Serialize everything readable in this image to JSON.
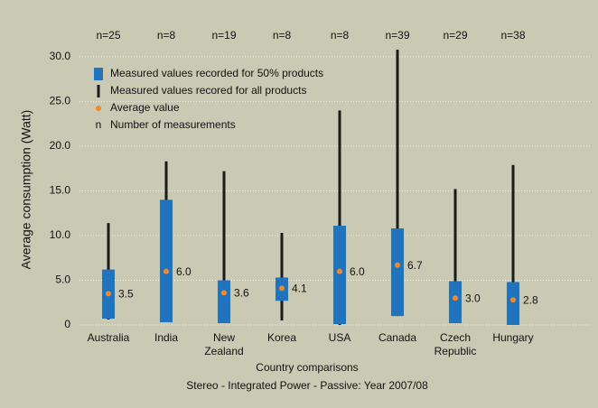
{
  "chart_data": {
    "type": "range-box",
    "y_label": "Average consumption (Watt)",
    "x_label": "Country comparisons",
    "subtitle": "Stereo - Integrated Power - Passive: Year 2007/08",
    "categories": [
      "Australia",
      "India",
      "New Zealand",
      "Korea",
      "USA",
      "Canada",
      "Czech Republic",
      "Hungary"
    ],
    "n_labels": [
      "n=25",
      "n=8",
      "n=19",
      "n=8",
      "n=8",
      "n=39",
      "n=29",
      "n=38"
    ],
    "min": [
      0.6,
      0.3,
      0.2,
      0.5,
      0,
      1.0,
      0.2,
      0
    ],
    "max": [
      11.4,
      18.3,
      17.2,
      10.3,
      24.0,
      30.8,
      15.2,
      17.9
    ],
    "box_low": [
      0.7,
      0.3,
      0.2,
      2.7,
      0.1,
      1.0,
      0.2,
      0
    ],
    "box_high": [
      6.2,
      14.0,
      5.0,
      5.3,
      11.1,
      10.8,
      4.9,
      4.8
    ],
    "mean": [
      3.5,
      6.0,
      3.6,
      4.1,
      6.0,
      6.7,
      3.0,
      2.8
    ],
    "mean_labels": [
      "3.5",
      "6.0",
      "3.6",
      "4.1",
      "6.0",
      "6.7",
      "3.0",
      "2.8"
    ],
    "box_color": "#1f74bd",
    "whisker_color": "#1a1a1a",
    "mean_color": "#f0892b",
    "legend": [
      {
        "symbol": "box",
        "label": "Measured values recorded for 50% products"
      },
      {
        "symbol": "whisker",
        "label": "Measured values recored for all products"
      },
      {
        "symbol": "dot",
        "label": "Average value"
      },
      {
        "symbol": "n",
        "symbol_text": "n",
        "label": "Number of measurements"
      }
    ],
    "ylim": [
      0,
      31
    ],
    "yticks": [
      0,
      {
        "value": 5,
        "label": "5.0"
      },
      {
        "value": 10,
        "label": "10.0"
      },
      {
        "value": 15,
        "label": "15.0"
      },
      {
        "value": 20,
        "label": "20.0"
      },
      {
        "value": 25,
        "label": "25.0"
      },
      {
        "value": 30,
        "label": "30.0"
      }
    ],
    "grid": true
  }
}
